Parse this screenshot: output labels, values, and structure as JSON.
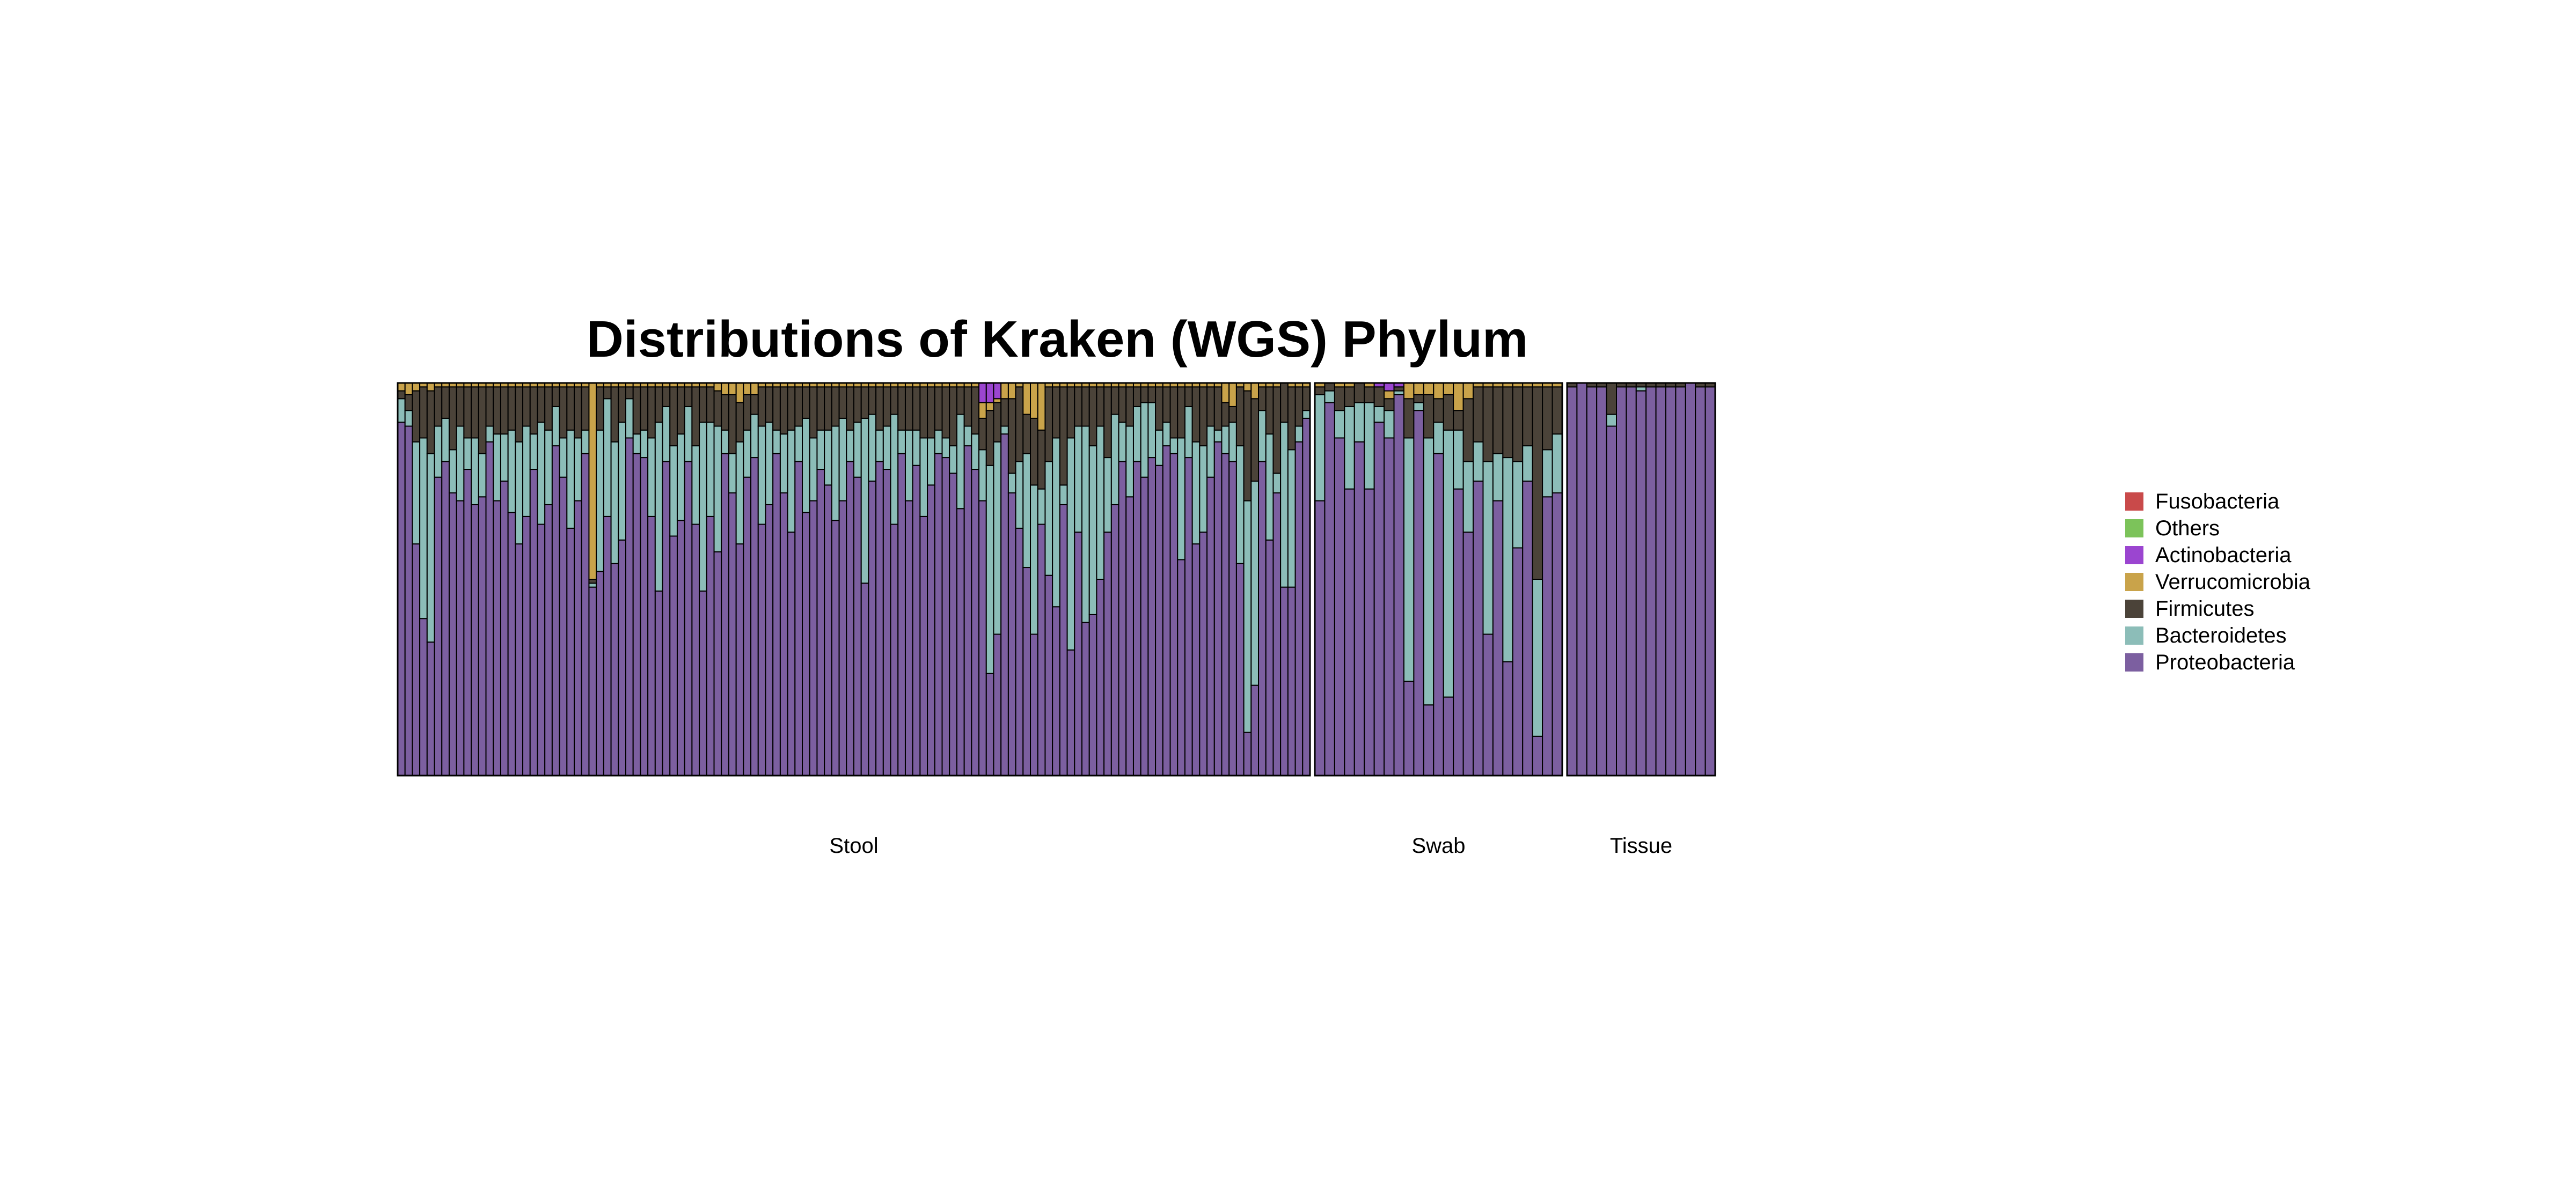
{
  "chart_data": {
    "type": "bar",
    "stacked": true,
    "normalized": true,
    "title": "Distributions of Kraken (WGS) Phylum",
    "xlabel": "",
    "ylabel": "",
    "ylim": [
      0,
      1
    ],
    "grid": false,
    "legend_position": "right",
    "series_order_bottom_to_top": [
      "Proteobacteria",
      "Bacteroidetes",
      "Firmicutes",
      "Verrucomicrobia",
      "Actinobacteria",
      "Others",
      "Fusobacteria"
    ],
    "legend": [
      {
        "name": "Fusobacteria",
        "color": "#c94a4a"
      },
      {
        "name": "Others",
        "color": "#7cc35a"
      },
      {
        "name": "Actinobacteria",
        "color": "#9b45d0"
      },
      {
        "name": "Verrucomicrobia",
        "color": "#c9a34a"
      },
      {
        "name": "Firmicutes",
        "color": "#4b4339"
      },
      {
        "name": "Bacteroidetes",
        "color": "#8cbdb8"
      },
      {
        "name": "Proteobacteria",
        "color": "#7c5fa0"
      }
    ],
    "groups": [
      {
        "label": "Stool",
        "bars": [
          [
            0.9,
            0.06,
            0.02,
            0.02
          ],
          [
            0.89,
            0.04,
            0.04,
            0.03
          ],
          [
            0.59,
            0.26,
            0.13,
            0.02
          ],
          [
            0.4,
            0.46,
            0.13,
            0.01
          ],
          [
            0.34,
            0.48,
            0.16,
            0.02
          ],
          [
            0.76,
            0.13,
            0.1,
            0.01
          ],
          [
            0.8,
            0.11,
            0.08,
            0.01
          ],
          [
            0.72,
            0.11,
            0.16,
            0.01
          ],
          [
            0.7,
            0.19,
            0.1,
            0.01
          ],
          [
            0.78,
            0.08,
            0.13,
            0.01
          ],
          [
            0.69,
            0.17,
            0.13,
            0.01
          ],
          [
            0.71,
            0.11,
            0.17,
            0.01
          ],
          [
            0.85,
            0.04,
            0.1,
            0.01
          ],
          [
            0.7,
            0.17,
            0.12,
            0.01
          ],
          [
            0.75,
            0.12,
            0.12,
            0.01
          ],
          [
            0.67,
            0.21,
            0.11,
            0.01
          ],
          [
            0.59,
            0.26,
            0.14,
            0.01
          ],
          [
            0.66,
            0.23,
            0.1,
            0.01
          ],
          [
            0.78,
            0.09,
            0.12,
            0.01
          ],
          [
            0.64,
            0.26,
            0.09,
            0.01
          ],
          [
            0.69,
            0.19,
            0.11,
            0.01
          ],
          [
            0.84,
            0.1,
            0.05,
            0.01
          ],
          [
            0.76,
            0.1,
            0.13,
            0.01
          ],
          [
            0.63,
            0.25,
            0.11,
            0.01
          ],
          [
            0.7,
            0.16,
            0.13,
            0.01
          ],
          [
            0.82,
            0.06,
            0.11,
            0.01
          ],
          [
            0.48,
            0.01,
            0.01,
            0.5
          ],
          [
            0.52,
            0.36,
            0.11,
            0.01
          ],
          [
            0.66,
            0.3,
            0.03,
            0.01
          ],
          [
            0.54,
            0.31,
            0.14,
            0.01
          ],
          [
            0.6,
            0.3,
            0.09,
            0.01
          ],
          [
            0.86,
            0.1,
            0.03,
            0.01
          ],
          [
            0.82,
            0.05,
            0.12,
            0.01
          ],
          [
            0.81,
            0.07,
            0.11,
            0.01
          ],
          [
            0.66,
            0.2,
            0.13,
            0.01
          ],
          [
            0.47,
            0.43,
            0.09,
            0.01
          ],
          [
            0.8,
            0.14,
            0.05,
            0.01
          ],
          [
            0.61,
            0.23,
            0.15,
            0.01
          ],
          [
            0.65,
            0.22,
            0.12,
            0.01
          ],
          [
            0.8,
            0.14,
            0.05,
            0.01
          ],
          [
            0.64,
            0.2,
            0.15,
            0.01
          ],
          [
            0.47,
            0.43,
            0.09,
            0.01
          ],
          [
            0.66,
            0.24,
            0.09,
            0.01
          ],
          [
            0.57,
            0.32,
            0.09,
            0.02
          ],
          [
            0.82,
            0.06,
            0.09,
            0.03
          ],
          [
            0.72,
            0.1,
            0.15,
            0.03
          ],
          [
            0.59,
            0.26,
            0.1,
            0.05
          ],
          [
            0.76,
            0.12,
            0.09,
            0.03
          ],
          [
            0.81,
            0.11,
            0.05,
            0.03
          ],
          [
            0.64,
            0.25,
            0.1,
            0.01
          ],
          [
            0.69,
            0.21,
            0.09,
            0.01
          ],
          [
            0.82,
            0.06,
            0.11,
            0.01
          ],
          [
            0.72,
            0.15,
            0.12,
            0.01
          ],
          [
            0.62,
            0.26,
            0.11,
            0.01
          ],
          [
            0.8,
            0.09,
            0.1,
            0.01
          ],
          [
            0.67,
            0.24,
            0.08,
            0.01
          ],
          [
            0.7,
            0.16,
            0.13,
            0.01
          ],
          [
            0.78,
            0.1,
            0.11,
            0.01
          ],
          [
            0.74,
            0.14,
            0.11,
            0.01
          ],
          [
            0.65,
            0.24,
            0.1,
            0.01
          ],
          [
            0.7,
            0.21,
            0.08,
            0.01
          ],
          [
            0.8,
            0.08,
            0.11,
            0.01
          ],
          [
            0.76,
            0.14,
            0.09,
            0.01
          ],
          [
            0.49,
            0.42,
            0.08,
            0.01
          ],
          [
            0.75,
            0.17,
            0.07,
            0.01
          ],
          [
            0.8,
            0.08,
            0.11,
            0.01
          ],
          [
            0.78,
            0.11,
            0.1,
            0.01
          ],
          [
            0.64,
            0.28,
            0.07,
            0.01
          ],
          [
            0.82,
            0.06,
            0.11,
            0.01
          ],
          [
            0.7,
            0.18,
            0.11,
            0.01
          ],
          [
            0.79,
            0.09,
            0.11,
            0.01
          ],
          [
            0.66,
            0.2,
            0.13,
            0.01
          ],
          [
            0.74,
            0.12,
            0.13,
            0.01
          ],
          [
            0.82,
            0.06,
            0.11,
            0.01
          ],
          [
            0.81,
            0.05,
            0.13,
            0.01
          ],
          [
            0.77,
            0.07,
            0.15,
            0.01
          ],
          [
            0.68,
            0.24,
            0.07,
            0.01
          ],
          [
            0.84,
            0.05,
            0.1,
            0.01
          ],
          [
            0.78,
            0.09,
            0.12,
            0.01
          ],
          [
            0.7,
            0.13,
            0.08,
            0.04,
            0.05
          ],
          [
            0.26,
            0.53,
            0.14,
            0.02,
            0.05
          ],
          [
            0.36,
            0.49,
            0.1,
            0.01,
            0.04
          ],
          [
            0.87,
            0.02,
            0.07,
            0.04
          ],
          [
            0.72,
            0.05,
            0.19,
            0.04
          ],
          [
            0.63,
            0.17,
            0.19,
            0.01
          ],
          [
            0.53,
            0.29,
            0.1,
            0.08
          ],
          [
            0.36,
            0.38,
            0.17,
            0.09
          ],
          [
            0.64,
            0.09,
            0.15,
            0.12
          ],
          [
            0.51,
            0.29,
            0.19,
            0.01
          ],
          [
            0.43,
            0.43,
            0.13,
            0.01
          ],
          [
            0.69,
            0.05,
            0.25,
            0.01
          ],
          [
            0.32,
            0.54,
            0.13,
            0.01
          ],
          [
            0.62,
            0.27,
            0.1,
            0.01
          ],
          [
            0.39,
            0.5,
            0.1,
            0.01
          ],
          [
            0.41,
            0.43,
            0.15,
            0.01
          ],
          [
            0.5,
            0.39,
            0.1,
            0.01
          ],
          [
            0.62,
            0.19,
            0.18,
            0.01
          ],
          [
            0.69,
            0.23,
            0.07,
            0.01
          ],
          [
            0.8,
            0.1,
            0.09,
            0.01
          ],
          [
            0.71,
            0.18,
            0.1,
            0.01
          ],
          [
            0.8,
            0.14,
            0.05,
            0.01
          ],
          [
            0.76,
            0.19,
            0.04,
            0.01
          ],
          [
            0.81,
            0.14,
            0.04,
            0.01
          ],
          [
            0.79,
            0.09,
            0.11,
            0.01
          ],
          [
            0.84,
            0.06,
            0.09,
            0.01
          ],
          [
            0.82,
            0.04,
            0.13,
            0.01
          ],
          [
            0.55,
            0.31,
            0.13,
            0.01
          ],
          [
            0.81,
            0.13,
            0.05,
            0.01
          ],
          [
            0.59,
            0.26,
            0.14,
            0.01
          ],
          [
            0.62,
            0.22,
            0.15,
            0.01
          ],
          [
            0.76,
            0.13,
            0.1,
            0.01
          ],
          [
            0.85,
            0.03,
            0.11,
            0.01
          ],
          [
            0.82,
            0.07,
            0.06,
            0.05
          ],
          [
            0.8,
            0.1,
            0.04,
            0.06
          ],
          [
            0.54,
            0.3,
            0.15,
            0.01
          ],
          [
            0.11,
            0.59,
            0.28,
            0.02
          ],
          [
            0.23,
            0.52,
            0.21,
            0.04
          ],
          [
            0.8,
            0.13,
            0.06,
            0.01
          ],
          [
            0.6,
            0.27,
            0.12,
            0.01
          ],
          [
            0.72,
            0.05,
            0.22,
            0.01
          ],
          [
            0.48,
            0.42,
            0.1,
            0.0
          ],
          [
            0.48,
            0.35,
            0.16,
            0.01
          ],
          [
            0.85,
            0.04,
            0.1,
            0.01
          ],
          [
            0.91,
            0.02,
            0.06,
            0.01
          ]
        ]
      },
      {
        "label": "Swab",
        "bars": [
          [
            0.7,
            0.27,
            0.02,
            0.01
          ],
          [
            0.95,
            0.03,
            0.02,
            0.0
          ],
          [
            0.86,
            0.07,
            0.06,
            0.01
          ],
          [
            0.73,
            0.21,
            0.05,
            0.01
          ],
          [
            0.85,
            0.1,
            0.05,
            0.0
          ],
          [
            0.73,
            0.22,
            0.04,
            0.01
          ],
          [
            0.9,
            0.04,
            0.05,
            0.0,
            0.01
          ],
          [
            0.86,
            0.07,
            0.03,
            0.02,
            0.02
          ],
          [
            0.97,
            0.01,
            0.01,
            0.0,
            0.01
          ],
          [
            0.24,
            0.62,
            0.1,
            0.04
          ],
          [
            0.93,
            0.02,
            0.02,
            0.03
          ],
          [
            0.18,
            0.68,
            0.11,
            0.03
          ],
          [
            0.82,
            0.08,
            0.06,
            0.04
          ],
          [
            0.2,
            0.68,
            0.09,
            0.03
          ],
          [
            0.73,
            0.15,
            0.05,
            0.07
          ],
          [
            0.62,
            0.18,
            0.16,
            0.04
          ],
          [
            0.75,
            0.1,
            0.14,
            0.01
          ],
          [
            0.36,
            0.44,
            0.19,
            0.01
          ],
          [
            0.7,
            0.12,
            0.17,
            0.01
          ],
          [
            0.29,
            0.52,
            0.18,
            0.01
          ],
          [
            0.58,
            0.22,
            0.19,
            0.01
          ],
          [
            0.75,
            0.09,
            0.15,
            0.01
          ],
          [
            0.1,
            0.4,
            0.49,
            0.01
          ],
          [
            0.71,
            0.12,
            0.16,
            0.01
          ],
          [
            0.72,
            0.15,
            0.12,
            0.01
          ]
        ]
      },
      {
        "label": "Tissue",
        "bars": [
          [
            0.99,
            0.0,
            0.01
          ],
          [
            1.0,
            0.0,
            0.0
          ],
          [
            0.99,
            0.0,
            0.01
          ],
          [
            0.99,
            0.0,
            0.01
          ],
          [
            0.89,
            0.03,
            0.08
          ],
          [
            0.99,
            0.0,
            0.01
          ],
          [
            0.99,
            0.0,
            0.01
          ],
          [
            0.98,
            0.01,
            0.01
          ],
          [
            0.99,
            0.0,
            0.01
          ],
          [
            0.99,
            0.0,
            0.01
          ],
          [
            0.99,
            0.0,
            0.01
          ],
          [
            0.99,
            0.0,
            0.01
          ],
          [
            1.0,
            0.0,
            0.0
          ],
          [
            0.99,
            0.0,
            0.01
          ],
          [
            0.99,
            0.0,
            0.01
          ]
        ]
      }
    ]
  }
}
